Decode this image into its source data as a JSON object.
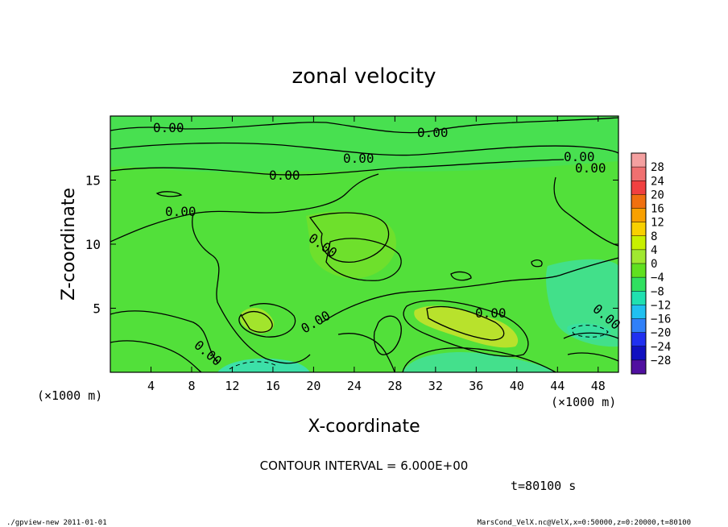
{
  "chart_data": {
    "type": "heatmap",
    "title": "zonal velocity",
    "xlabel": "X-coordinate",
    "ylabel": "Z-coordinate",
    "x_unit": "(×1000 m)",
    "y_unit": "(×1000 m)",
    "xlim": [
      0,
      50
    ],
    "ylim": [
      0,
      20
    ],
    "x_ticks": [
      "4",
      "8",
      "12",
      "16",
      "20",
      "24",
      "28",
      "32",
      "36",
      "40",
      "44",
      "48"
    ],
    "y_ticks": [
      "5",
      "10",
      "15"
    ],
    "contour_label": "0.00",
    "contour_interval": "CONTOUR INTERVAL = 6.000E+00",
    "time_label": "t=80100 s",
    "colorbar": {
      "labels": [
        "28",
        "24",
        "20",
        "16",
        "12",
        "8",
        "4",
        "0",
        "−4",
        "−8",
        "−12",
        "−16",
        "−20",
        "−24",
        "−28"
      ],
      "colors": [
        "#f4a0a0",
        "#f07070",
        "#f04040",
        "#f07010",
        "#f8a000",
        "#f8d000",
        "#c8f000",
        "#a0e830",
        "#60e020",
        "#30e060",
        "#20e0b0",
        "#20c0f0",
        "#3080f8",
        "#2030f0",
        "#1010c0",
        "#5010a0"
      ]
    },
    "regions": [
      {
        "name": "background",
        "value": 2,
        "color": "#52e03a"
      },
      {
        "name": "top-band",
        "value": -1,
        "color": "#48e050"
      },
      {
        "name": "center-positive",
        "value": 4,
        "color": "#78e428"
      },
      {
        "name": "low-left-positive",
        "value": 6,
        "color": "#a2e42c"
      },
      {
        "name": "low-right-positive",
        "value": 8,
        "color": "#b6e02c"
      },
      {
        "name": "bottom-negative",
        "value": -6,
        "color": "#38e0a0"
      },
      {
        "name": "right-negative",
        "value": -4,
        "color": "#40e088"
      }
    ]
  },
  "footer": {
    "left": "./gpview-new  2011-01-01",
    "right": "MarsCond_VelX.nc@VelX,x=0:50000,z=0:20000,t=80100"
  }
}
